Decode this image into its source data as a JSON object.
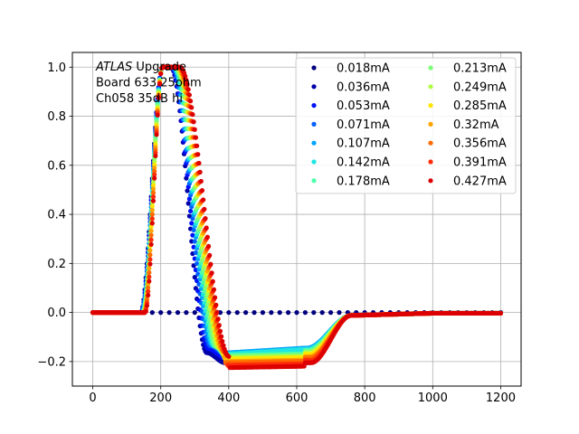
{
  "chart_data": {
    "type": "scatter",
    "annotation": {
      "lines": [
        {
          "italic": "ATLAS",
          "text": " Upgrade"
        },
        {
          "italic": "",
          "text": " Board 633 25ohm"
        },
        {
          "italic": "",
          "text": " Ch058 35dB hi"
        }
      ]
    },
    "xlabel": "",
    "ylabel": "",
    "xlim": [
      -60,
      1260
    ],
    "ylim": [
      -0.3,
      1.06
    ],
    "xticks": [
      "0",
      "200",
      "400",
      "600",
      "800",
      "1000",
      "1200"
    ],
    "yticks": [
      "−0.2",
      "0.0",
      "0.2",
      "0.4",
      "0.6",
      "0.8",
      "1.0"
    ],
    "grid": true,
    "legend_position": "top-right",
    "legend_columns": 2,
    "x_range": [
      0,
      1200
    ],
    "x_step": 3.125,
    "series": [
      {
        "name": "0.018mA",
        "color": "#000080",
        "shape": "flat",
        "peak": 0.0,
        "undershoot": 0.0
      },
      {
        "name": "0.036mA",
        "color": "#0000a8",
        "shape": "pulse",
        "peak": 1.0,
        "undershoot": -0.205
      },
      {
        "name": "0.053mA",
        "color": "#0010ff",
        "shape": "pulse",
        "peak": 1.0,
        "undershoot": -0.185
      },
      {
        "name": "0.071mA",
        "color": "#0060ff",
        "shape": "pulse",
        "peak": 1.0,
        "undershoot": -0.17
      },
      {
        "name": "0.107mA",
        "color": "#00a4ff",
        "shape": "pulse",
        "peak": 1.0,
        "undershoot": -0.165
      },
      {
        "name": "0.142mA",
        "color": "#1fe6e0",
        "shape": "pulse",
        "peak": 1.0,
        "undershoot": -0.17
      },
      {
        "name": "0.178mA",
        "color": "#4cffaa",
        "shape": "pulse",
        "peak": 1.0,
        "undershoot": -0.175
      },
      {
        "name": "0.213mA",
        "color": "#7dff7a",
        "shape": "pulse",
        "peak": 1.0,
        "undershoot": -0.18
      },
      {
        "name": "0.249mA",
        "color": "#b0ff46",
        "shape": "pulse",
        "peak": 1.0,
        "undershoot": -0.185
      },
      {
        "name": "0.285mA",
        "color": "#ffe600",
        "shape": "pulse",
        "peak": 1.0,
        "undershoot": -0.19
      },
      {
        "name": "0.32mA",
        "color": "#ffa400",
        "shape": "pulse",
        "peak": 1.0,
        "undershoot": -0.2
      },
      {
        "name": "0.356mA",
        "color": "#ff6a00",
        "shape": "pulse",
        "peak": 1.0,
        "undershoot": -0.205
      },
      {
        "name": "0.391mA",
        "color": "#ff2c0a",
        "shape": "pulse",
        "peak": 1.0,
        "undershoot": -0.215
      },
      {
        "name": "0.427mA",
        "color": "#dc0000",
        "shape": "pulse",
        "peak": 1.0,
        "undershoot": -0.225
      }
    ]
  }
}
